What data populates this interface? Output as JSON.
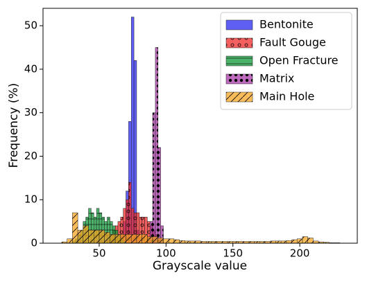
{
  "chart_data": {
    "type": "histogram",
    "xlabel": "Grayscale value",
    "ylabel": "Frequency (%)",
    "xlim": [
      8,
      243
    ],
    "ylim": [
      0,
      54
    ],
    "xticks": [
      50,
      100,
      150,
      200
    ],
    "yticks": [
      0,
      10,
      20,
      30,
      40,
      50
    ],
    "legend": "upper right",
    "series": [
      {
        "name": "Bentonite",
        "color": "#2a2af0",
        "bins": [
          66,
          68,
          70,
          72,
          74,
          76,
          78,
          80
        ],
        "values": [
          2,
          5,
          12,
          28,
          52,
          42,
          3
        ]
      },
      {
        "name": "Fault Gouge",
        "color": "#f02a2a",
        "bins": [
          56,
          58,
          60,
          62,
          64,
          66,
          68,
          70,
          72,
          74,
          76,
          78,
          80,
          82,
          84,
          86,
          88,
          90,
          92,
          94,
          96
        ],
        "values": [
          1,
          2,
          3,
          4,
          5,
          6,
          8,
          10,
          14,
          8,
          7,
          7,
          6,
          6,
          6,
          5,
          4,
          3,
          2,
          1
        ]
      },
      {
        "name": "Open Fracture",
        "color": "#119a3a",
        "bins": [
          30,
          32,
          34,
          36,
          38,
          40,
          42,
          44,
          46,
          48,
          50,
          52,
          54,
          56,
          58,
          60,
          62,
          64,
          66,
          68,
          70
        ],
        "values": [
          0.5,
          1,
          2,
          3,
          5,
          6,
          8,
          7,
          6,
          8,
          7,
          6,
          5,
          6,
          5,
          4,
          3,
          2,
          1,
          0.5
        ]
      },
      {
        "name": "Matrix",
        "color": "#a83aa8",
        "bins": [
          86,
          88,
          90,
          92,
          94,
          96,
          98
        ],
        "values": [
          1,
          5,
          30,
          45,
          22,
          4
        ]
      },
      {
        "name": "Main Hole",
        "color": "#f5a623",
        "bins": [
          22,
          26,
          30,
          34,
          38,
          42,
          46,
          50,
          54,
          58,
          62,
          66,
          70,
          74,
          78,
          82,
          86,
          90,
          94,
          98,
          102,
          106,
          110,
          114,
          118,
          122,
          126,
          130,
          134,
          138,
          142,
          146,
          150,
          154,
          158,
          162,
          166,
          170,
          174,
          178,
          182,
          186,
          190,
          194,
          198,
          202,
          206,
          210,
          214,
          218,
          222,
          226,
          230
        ],
        "values": [
          0.3,
          1,
          7,
          3,
          4,
          3,
          3,
          3,
          2.5,
          2,
          2,
          2,
          2,
          2,
          2,
          2,
          1.5,
          1.5,
          1.2,
          1,
          1,
          0.8,
          0.6,
          0.5,
          0.5,
          0.5,
          0.4,
          0.4,
          0.4,
          0.4,
          0.4,
          0.4,
          0.4,
          0.4,
          0.4,
          0.4,
          0.4,
          0.4,
          0.4,
          0.5,
          0.5,
          0.5,
          0.6,
          0.8,
          1,
          1.5,
          1.2,
          0.5,
          0.3,
          0.2,
          0.1,
          0.1
        ]
      }
    ]
  }
}
